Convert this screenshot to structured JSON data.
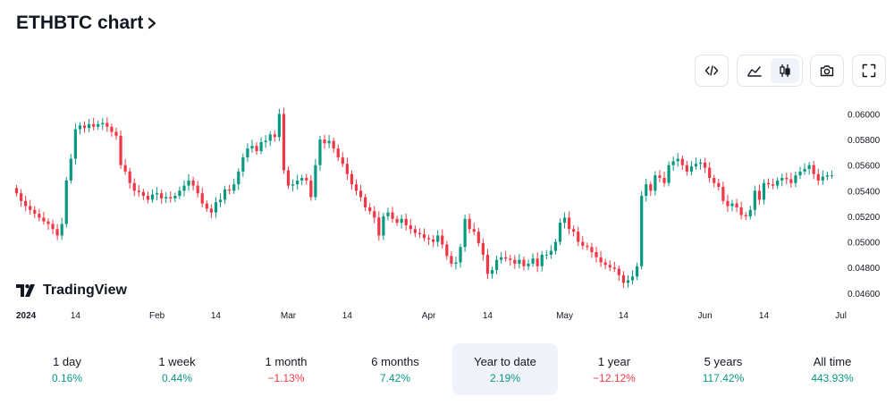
{
  "header": {
    "title": "ETHBTC chart",
    "chevron_icon": "chevron-right-icon"
  },
  "toolbar": {
    "embed_icon": "code-icon",
    "area_icon": "area-chart-icon",
    "candles_icon": "candlestick-icon",
    "snapshot_icon": "camera-icon",
    "fullscreen_icon": "fullscreen-icon",
    "active_style": "candles"
  },
  "brand": {
    "name": "TradingView",
    "logo_icon": "tradingview-logo-icon"
  },
  "colors": {
    "up": "#089981",
    "down": "#f23645",
    "text": "#131722",
    "muted": "#6a6d78",
    "active_bg": "#f0f3fa"
  },
  "chart_data": {
    "type": "candlestick",
    "symbol": "ETHBTC",
    "y_ticks": [
      "0.06000",
      "0.05800",
      "0.05600",
      "0.05400",
      "0.05200",
      "0.05000",
      "0.04800",
      "0.04600"
    ],
    "ylim": [
      0.0455,
      0.0608
    ],
    "x_ticks": [
      {
        "label": "2024",
        "idx": 0
      },
      {
        "label": "14",
        "idx": 13
      },
      {
        "label": "Feb",
        "idx": 31
      },
      {
        "label": "14",
        "idx": 44
      },
      {
        "label": "Mar",
        "idx": 60
      },
      {
        "label": "14",
        "idx": 73
      },
      {
        "label": "Apr",
        "idx": 91
      },
      {
        "label": "14",
        "idx": 104
      },
      {
        "label": "May",
        "idx": 121
      },
      {
        "label": "14",
        "idx": 134
      },
      {
        "label": "Jun",
        "idx": 152
      },
      {
        "label": "14",
        "idx": 165
      },
      {
        "label": "Jul",
        "idx": 182
      }
    ],
    "close": [
      0.0538,
      0.0532,
      0.0528,
      0.0525,
      0.0522,
      0.0519,
      0.0516,
      0.0514,
      0.051,
      0.0505,
      0.0514,
      0.0548,
      0.0565,
      0.0588,
      0.0591,
      0.0589,
      0.0592,
      0.059,
      0.0592,
      0.0593,
      0.059,
      0.0586,
      0.0583,
      0.056,
      0.0555,
      0.0546,
      0.054,
      0.0539,
      0.0536,
      0.0533,
      0.0537,
      0.0538,
      0.0534,
      0.0535,
      0.0534,
      0.0536,
      0.054,
      0.0544,
      0.0548,
      0.0544,
      0.0538,
      0.053,
      0.0526,
      0.0523,
      0.0531,
      0.0533,
      0.0541,
      0.054,
      0.0545,
      0.0555,
      0.0566,
      0.0573,
      0.0575,
      0.0571,
      0.0578,
      0.0579,
      0.0584,
      0.0582,
      0.06,
      0.0556,
      0.0544,
      0.0545,
      0.0548,
      0.055,
      0.0548,
      0.0535,
      0.056,
      0.058,
      0.0577,
      0.0579,
      0.0573,
      0.0566,
      0.0561,
      0.0553,
      0.0545,
      0.054,
      0.0535,
      0.0527,
      0.0524,
      0.0519,
      0.0505,
      0.052,
      0.0523,
      0.0518,
      0.0515,
      0.0518,
      0.0513,
      0.051,
      0.0507,
      0.0506,
      0.0503,
      0.0502,
      0.05,
      0.0505,
      0.0498,
      0.0489,
      0.0483,
      0.0484,
      0.0496,
      0.0518,
      0.051,
      0.0508,
      0.0499,
      0.049,
      0.0475,
      0.0478,
      0.0486,
      0.0488,
      0.0487,
      0.0486,
      0.0483,
      0.0486,
      0.0481,
      0.0483,
      0.0487,
      0.0481,
      0.049,
      0.049,
      0.0493,
      0.05,
      0.0515,
      0.0519,
      0.051,
      0.0508,
      0.05,
      0.0497,
      0.0496,
      0.0492,
      0.0488,
      0.0484,
      0.0482,
      0.048,
      0.0479,
      0.0474,
      0.0468,
      0.047,
      0.0473,
      0.0481,
      0.0536,
      0.0545,
      0.054,
      0.0552,
      0.055,
      0.0546,
      0.056,
      0.0563,
      0.0565,
      0.056,
      0.0555,
      0.0559,
      0.0561,
      0.0562,
      0.0558,
      0.055,
      0.0546,
      0.0543,
      0.0532,
      0.0528,
      0.053,
      0.0527,
      0.0521,
      0.052,
      0.0525,
      0.054,
      0.0533,
      0.0546,
      0.0545,
      0.0544,
      0.0548,
      0.055,
      0.0549,
      0.0546,
      0.0552,
      0.0555,
      0.0557,
      0.056,
      0.0553,
      0.0548,
      0.0551,
      0.0552,
      0.0552
    ]
  },
  "periods": [
    {
      "label": "1 day",
      "value": "0.16%",
      "trend": "pos"
    },
    {
      "label": "1 week",
      "value": "0.44%",
      "trend": "pos"
    },
    {
      "label": "1 month",
      "value": "−1.13%",
      "trend": "neg"
    },
    {
      "label": "6 months",
      "value": "7.42%",
      "trend": "pos"
    },
    {
      "label": "Year to date",
      "value": "2.19%",
      "trend": "pos",
      "active": true
    },
    {
      "label": "1 year",
      "value": "−12.12%",
      "trend": "neg"
    },
    {
      "label": "5 years",
      "value": "117.42%",
      "trend": "pos"
    },
    {
      "label": "All time",
      "value": "443.93%",
      "trend": "pos"
    }
  ]
}
